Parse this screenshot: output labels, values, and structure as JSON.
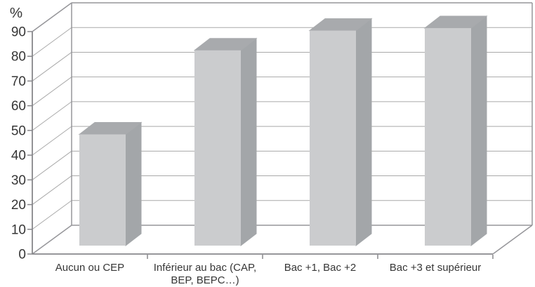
{
  "chart_data": {
    "type": "bar",
    "projection": "3d-column",
    "title": "",
    "ylabel": "%",
    "xlabel": "",
    "categories": [
      "Aucun ou CEP",
      "Inférieur au bac (CAP, BEP, BEPC…)",
      "Bac +1, Bac +2",
      "Bac +3 et supérieur"
    ],
    "category_label_lines": [
      [
        "Aucun ou CEP"
      ],
      [
        "Inférieur au bac (CAP,",
        "BEP, BEPC…)"
      ],
      [
        "Bac +1, Bac +2"
      ],
      [
        "Bac +3 et supérieur"
      ]
    ],
    "values": [
      45,
      79,
      87,
      88
    ],
    "unit": "%",
    "ylim": [
      0,
      90
    ],
    "yticks": [
      0,
      10,
      20,
      30,
      40,
      50,
      60,
      70,
      80,
      90
    ],
    "grid": true,
    "legend": null,
    "colors": {
      "bar_front": "#cbccce",
      "bar_top": "#a8aaad",
      "bar_side": "#a3a6a9",
      "gridline": "#a9a9a9",
      "wall_edge": "#96969a",
      "axis": "#87878b",
      "text": "#363636",
      "background": "#ffffff"
    }
  }
}
